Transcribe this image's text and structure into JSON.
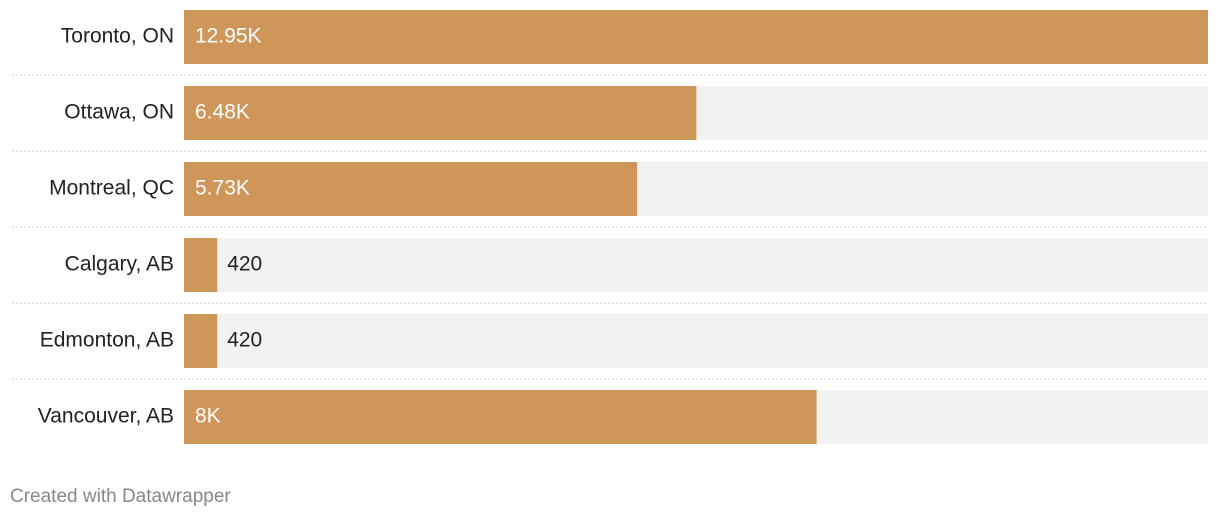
{
  "chart_data": {
    "type": "bar",
    "categories": [
      "Toronto, ON",
      "Ottawa, ON",
      "Montreal, QC",
      "Calgary, AB",
      "Edmonton, AB",
      "Vancouver, AB"
    ],
    "values": [
      12950,
      6480,
      5730,
      420,
      420,
      8000
    ],
    "value_labels": [
      "12.95K",
      "6.48K",
      "5.73K",
      "420",
      "420",
      "8K"
    ],
    "color": "#cf965a",
    "credit": "Created with Datawrapper"
  }
}
